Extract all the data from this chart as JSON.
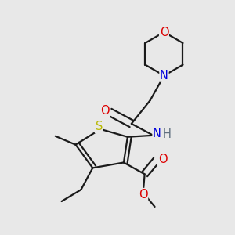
{
  "bg_color": "#e8e8e8",
  "bond_color": "#1a1a1a",
  "bond_width": 1.6,
  "dbo": 0.015,
  "colors": {
    "S": "#b8b800",
    "N_morph": "#0000dd",
    "N_amide": "#0000dd",
    "O": "#dd0000",
    "H": "#607080",
    "C": "#1a1a1a"
  },
  "fs": 10.5
}
